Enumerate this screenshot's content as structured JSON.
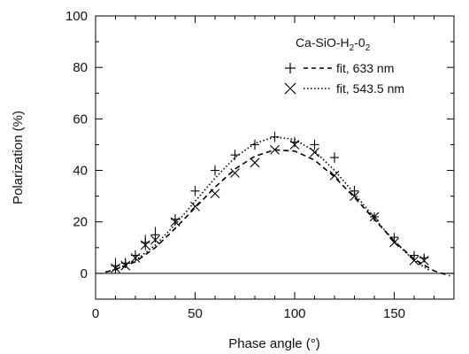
{
  "chart_data": {
    "type": "scatter",
    "xlabel": "Phase angle (°)",
    "ylabel": "Polarization (%)",
    "xlim": [
      0,
      180
    ],
    "ylim": [
      -10,
      100
    ],
    "x_ticks": [
      0,
      50,
      100,
      150
    ],
    "x_tick_labels": [
      "0",
      "50",
      "100",
      "150"
    ],
    "y_ticks": [
      0,
      20,
      40,
      60,
      80,
      100
    ],
    "y_tick_labels": [
      "0",
      "20",
      "40",
      "60",
      "80",
      "100"
    ],
    "grid": false,
    "zero_line": true,
    "legend": {
      "position": "top-right",
      "title": "Ca-SiO-H",
      "title_sub_1": "2",
      "title_mid": "-0",
      "title_sub_2": "2"
    },
    "series": [
      {
        "name": "633 nm",
        "legend_label": "fit, 633 nm",
        "marker": "plus",
        "fit_style": "dashed",
        "points": [
          {
            "x": 10,
            "y": 3,
            "err": 3
          },
          {
            "x": 15,
            "y": 4,
            "err": 2
          },
          {
            "x": 20,
            "y": 7,
            "err": 2
          },
          {
            "x": 25,
            "y": 12,
            "err": 3
          },
          {
            "x": 30,
            "y": 15,
            "err": 3
          },
          {
            "x": 40,
            "y": 21,
            "err": 2
          },
          {
            "x": 50,
            "y": 32,
            "err": 2
          },
          {
            "x": 60,
            "y": 40,
            "err": 2
          },
          {
            "x": 70,
            "y": 46,
            "err": 2
          },
          {
            "x": 80,
            "y": 50,
            "err": 2
          },
          {
            "x": 90,
            "y": 53,
            "err": 2
          },
          {
            "x": 100,
            "y": 51,
            "err": 2
          },
          {
            "x": 110,
            "y": 50,
            "err": 2
          },
          {
            "x": 120,
            "y": 45,
            "err": 2
          },
          {
            "x": 130,
            "y": 32,
            "err": 2
          },
          {
            "x": 140,
            "y": 22,
            "err": 1
          },
          {
            "x": 150,
            "y": 14,
            "err": 1
          },
          {
            "x": 160,
            "y": 7,
            "err": 1
          },
          {
            "x": 165,
            "y": 6,
            "err": 1
          }
        ],
        "fit": [
          [
            5,
            0.5
          ],
          [
            10,
            1.5
          ],
          [
            20,
            4.5
          ],
          [
            30,
            10
          ],
          [
            40,
            17.5
          ],
          [
            50,
            25.5
          ],
          [
            60,
            33.5
          ],
          [
            70,
            40.5
          ],
          [
            80,
            45.5
          ],
          [
            90,
            48
          ],
          [
            100,
            47.5
          ],
          [
            110,
            44
          ],
          [
            120,
            37.5
          ],
          [
            130,
            29.5
          ],
          [
            140,
            21
          ],
          [
            150,
            12.5
          ],
          [
            160,
            5.5
          ],
          [
            170,
            1
          ],
          [
            178,
            -1
          ]
        ]
      },
      {
        "name": "543.5 nm",
        "legend_label": "fit, 543.5 nm",
        "marker": "cross",
        "fit_style": "dotted",
        "points": [
          {
            "x": 10,
            "y": 2
          },
          {
            "x": 15,
            "y": 3
          },
          {
            "x": 20,
            "y": 6
          },
          {
            "x": 25,
            "y": 11
          },
          {
            "x": 30,
            "y": 13
          },
          {
            "x": 40,
            "y": 20
          },
          {
            "x": 50,
            "y": 26
          },
          {
            "x": 60,
            "y": 31
          },
          {
            "x": 70,
            "y": 39
          },
          {
            "x": 80,
            "y": 43
          },
          {
            "x": 90,
            "y": 48
          },
          {
            "x": 100,
            "y": 50
          },
          {
            "x": 110,
            "y": 47
          },
          {
            "x": 120,
            "y": 38
          },
          {
            "x": 130,
            "y": 30
          },
          {
            "x": 140,
            "y": 22
          },
          {
            "x": 150,
            "y": 12
          },
          {
            "x": 160,
            "y": 5
          },
          {
            "x": 165,
            "y": 5
          }
        ],
        "fit": [
          [
            5,
            0.5
          ],
          [
            10,
            1.5
          ],
          [
            20,
            5
          ],
          [
            30,
            11
          ],
          [
            40,
            19
          ],
          [
            50,
            28
          ],
          [
            60,
            37
          ],
          [
            70,
            45
          ],
          [
            80,
            50.5
          ],
          [
            90,
            53
          ],
          [
            100,
            52
          ],
          [
            110,
            47.5
          ],
          [
            120,
            40
          ],
          [
            130,
            31
          ],
          [
            140,
            21.5
          ],
          [
            150,
            12.5
          ],
          [
            160,
            5
          ],
          [
            168,
            1
          ]
        ]
      }
    ]
  }
}
